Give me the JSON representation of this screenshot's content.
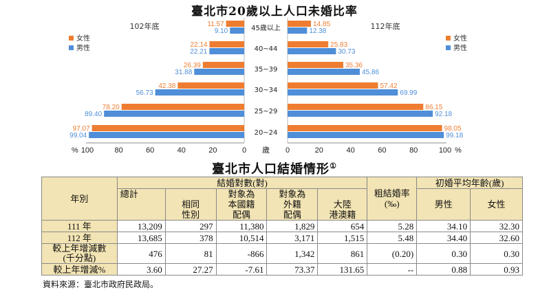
{
  "chart_data": {
    "type": "bar",
    "title": "臺北市20歲以上人口未婚比率",
    "categories": [
      "45歲以上",
      "40~44",
      "35~39",
      "30~34",
      "25~29",
      "20~24"
    ],
    "axis_label": "歲",
    "x_unit": "%",
    "xlim": [
      0,
      100
    ],
    "tick_labels": [
      "100",
      "80",
      "60",
      "40",
      "20",
      "0",
      "20",
      "40",
      "60",
      "80",
      "100"
    ],
    "legend": {
      "female": "女性",
      "male": "男性"
    },
    "colors": {
      "female": "#ee7d31",
      "male": "#4f8ed8"
    },
    "panels": [
      {
        "side": "left",
        "name": "102年底",
        "series": [
          {
            "name": "女性",
            "values": [
              11.57,
              22.14,
              26.39,
              42.38,
              78.2,
              97.07
            ],
            "labels": [
              "11.57",
              "22.14",
              "26.39",
              "42.38",
              "78.20",
              "97.07"
            ]
          },
          {
            "name": "男性",
            "values": [
              9.1,
              22.21,
              31.88,
              56.73,
              89.4,
              99.04
            ],
            "labels": [
              "9.10",
              "22.21",
              "31.88",
              "56.73",
              "89.40",
              "99.04"
            ]
          }
        ]
      },
      {
        "side": "right",
        "name": "112年底",
        "series": [
          {
            "name": "女性",
            "values": [
              14.85,
              25.83,
              35.36,
              57.42,
              86.15,
              98.05
            ],
            "labels": [
              "14.85",
              "25.83",
              "35.36",
              "57.42",
              "86.15",
              "98.05"
            ]
          },
          {
            "name": "男性",
            "values": [
              12.38,
              30.73,
              45.86,
              69.99,
              92.18,
              99.18
            ],
            "labels": [
              "12.38",
              "30.73",
              "45.86",
              "69.99",
              "92.18",
              "99.18"
            ]
          }
        ]
      }
    ]
  },
  "table": {
    "title": "臺北市人口結婚情形",
    "title_note": "①",
    "headers": {
      "year": "年別",
      "marriages": "結婚對數(對)",
      "total": "總計",
      "same_sex_1": "相同",
      "same_sex_2": "性別",
      "domestic_1": "對象為",
      "domestic_2": "本國籍",
      "domestic_3": "配偶",
      "foreign_1": "對象為",
      "foreign_2": "外籍",
      "foreign_3": "配偶",
      "mainland_1": "大陸",
      "mainland_2": "港澳籍",
      "crude_rate_1": "粗結婚率",
      "crude_rate_2": "(‰)",
      "avg_age": "初婚平均年齡(歲)",
      "male": "男性",
      "female": "女性"
    },
    "rows": [
      {
        "label": "111 年",
        "cells": [
          "13,209",
          "297",
          "11,380",
          "1,829",
          "654",
          "5.28",
          "34.10",
          "32.30"
        ]
      },
      {
        "label": "112 年",
        "cells": [
          "13,685",
          "378",
          "10,514",
          "3,171",
          "1,515",
          "5.48",
          "34.40",
          "32.60"
        ]
      },
      {
        "label": "較上年增減數\n(千分點)",
        "cells": [
          "476",
          "81",
          "-866",
          "1,342",
          "861",
          "(0.20)",
          "0.30",
          "0.30"
        ]
      },
      {
        "label": "較上年增減%",
        "cells": [
          "3.60",
          "27.27",
          "-7.61",
          "73.37",
          "131.65",
          "--",
          "0.88",
          "0.93"
        ]
      }
    ]
  },
  "footer": {
    "source": "資料來源：臺北市政府民政局。"
  }
}
